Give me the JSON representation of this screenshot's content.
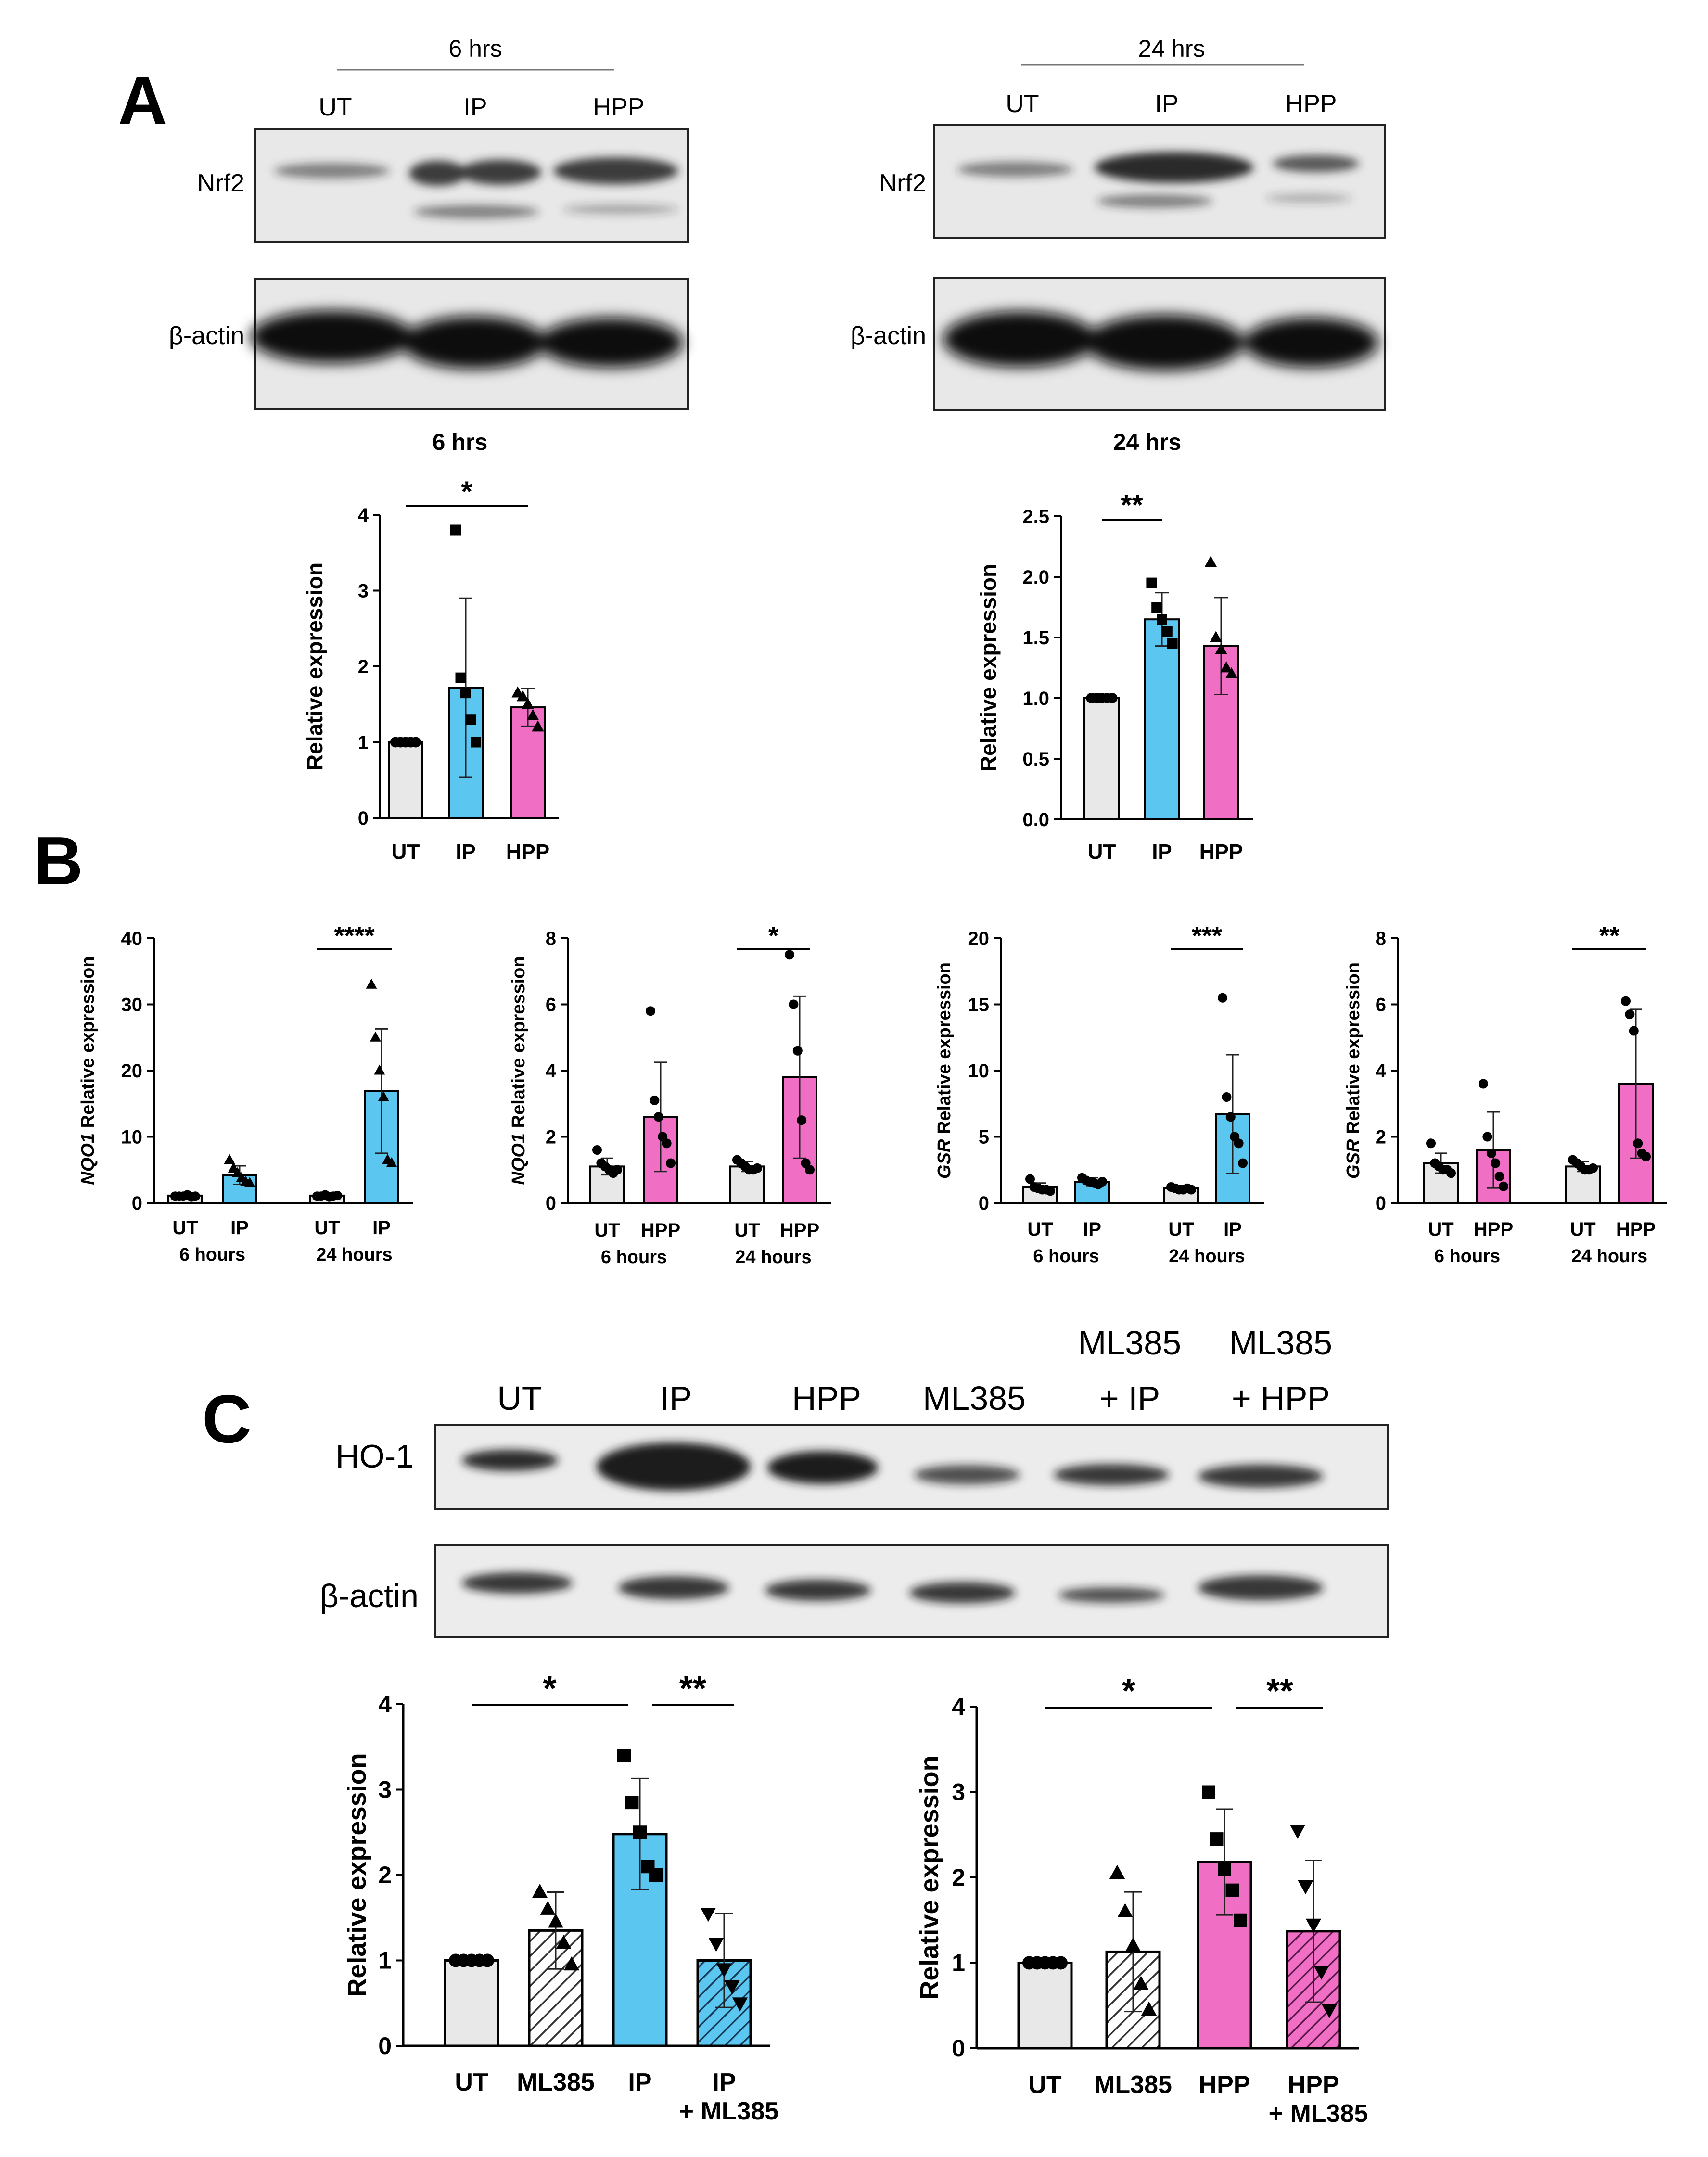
{
  "panel_A": {
    "letter": "A",
    "blots": [
      {
        "time_header": "6 hrs",
        "lanes": [
          "UT",
          "IP",
          "HPP"
        ],
        "rows": [
          "Nrf2",
          "β-actin"
        ]
      },
      {
        "time_header": "24 hrs",
        "lanes": [
          "UT",
          "IP",
          "HPP"
        ],
        "rows": [
          "Nrf2",
          "β-actin"
        ]
      }
    ]
  },
  "panel_B": {
    "letter": "B"
  },
  "panel_C": {
    "letter": "C",
    "lanes": [
      {
        "line1": "",
        "line2": "UT"
      },
      {
        "line1": "",
        "line2": "IP"
      },
      {
        "line1": "",
        "line2": "HPP"
      },
      {
        "line1": "",
        "line2": "ML385"
      },
      {
        "line1": "ML385",
        "line2": "+ IP"
      },
      {
        "line1": "ML385",
        "line2": "+ HPP"
      }
    ],
    "rows": [
      "HO-1",
      "β-actin"
    ]
  },
  "colors": {
    "ut": "#e8e8e8",
    "ip": "#5bc6f0",
    "hpp": "#f06ec4",
    "axis": "#000000",
    "blot_bg": "#e6e6e6",
    "band": "#222222"
  },
  "chart_data": [
    {
      "id": "A1",
      "type": "bar",
      "title": "6 hrs",
      "ylabel": "Relative expression",
      "ylabel_italic": "",
      "ylim": [
        0,
        4
      ],
      "yticks": [
        "0",
        "1",
        "2",
        "3",
        "4"
      ],
      "categories": [
        "UT",
        "IP",
        "HPP"
      ],
      "values": [
        1.0,
        1.72,
        1.46
      ],
      "sd": [
        0,
        1.18,
        0.25
      ],
      "colors": [
        "ut",
        "ip",
        "hpp"
      ],
      "hatch": [
        false,
        false,
        false
      ],
      "markers": [
        "circle",
        "square",
        "triangle"
      ],
      "points": [
        [
          1,
          1,
          1,
          1,
          1
        ],
        [
          3.8,
          1.85,
          1.65,
          1.3,
          1.0
        ],
        [
          1.65,
          1.6,
          1.5,
          1.35,
          1.2
        ]
      ],
      "sig": [
        {
          "from": 0,
          "to": 2,
          "label": "*"
        }
      ]
    },
    {
      "id": "A2",
      "type": "bar",
      "title": "24 hrs",
      "ylabel": "Relative expression",
      "ylabel_italic": "",
      "ylim": [
        0,
        2.5
      ],
      "yticks": [
        "0.0",
        "0.5",
        "1.0",
        "1.5",
        "2.0",
        "2.5"
      ],
      "categories": [
        "UT",
        "IP",
        "HPP"
      ],
      "values": [
        1.0,
        1.65,
        1.43
      ],
      "sd": [
        0,
        0.22,
        0.4
      ],
      "colors": [
        "ut",
        "ip",
        "hpp"
      ],
      "hatch": [
        false,
        false,
        false
      ],
      "markers": [
        "circle",
        "square",
        "triangle"
      ],
      "points": [
        [
          1,
          1,
          1,
          1,
          1
        ],
        [
          1.95,
          1.75,
          1.65,
          1.55,
          1.45
        ],
        [
          2.12,
          1.5,
          1.4,
          1.25,
          1.2
        ]
      ],
      "sig": [
        {
          "from": 0,
          "to": 1,
          "label": "**"
        }
      ]
    },
    {
      "id": "B1",
      "type": "grouped_bar",
      "ylabel": " Relative expression",
      "ylabel_italic": "NQO1",
      "ylim": [
        0,
        40
      ],
      "yticks": [
        "0",
        "10",
        "20",
        "30",
        "40"
      ],
      "groups": [
        "6 hours",
        "24 hours"
      ],
      "categories": [
        "UT",
        "IP",
        "UT",
        "IP"
      ],
      "values": [
        1.1,
        4.2,
        1.1,
        16.9
      ],
      "sd": [
        0.3,
        1.4,
        0.3,
        9.4
      ],
      "colors": [
        "ut",
        "ip",
        "ut",
        "ip"
      ],
      "markers": [
        "circle",
        "triangle",
        "circle",
        "triangle"
      ],
      "points": [
        [
          1,
          1,
          1,
          1.2,
          0.9,
          1
        ],
        [
          6.5,
          5.2,
          4.5,
          3.8,
          3.2,
          3.0
        ],
        [
          1,
          1,
          1.2,
          0.9,
          1,
          1.1
        ],
        [
          33,
          25,
          20,
          16,
          6.5,
          6
        ]
      ],
      "sig": [
        {
          "from": 2,
          "to": 3,
          "label": "****"
        }
      ]
    },
    {
      "id": "B2",
      "type": "grouped_bar",
      "ylabel": " Relative expression",
      "ylabel_italic": "NQO1",
      "ylim": [
        0,
        8
      ],
      "yticks": [
        "0",
        "2",
        "4",
        "6",
        "8"
      ],
      "groups": [
        "6 hours",
        "24 hours"
      ],
      "categories": [
        "UT",
        "HPP",
        "UT",
        "HPP"
      ],
      "values": [
        1.1,
        2.6,
        1.1,
        3.8
      ],
      "sd": [
        0.25,
        1.65,
        0.15,
        2.45
      ],
      "colors": [
        "ut",
        "hpp",
        "ut",
        "hpp"
      ],
      "markers": [
        "circle",
        "circle",
        "circle",
        "circle"
      ],
      "points": [
        [
          1.6,
          1.2,
          1.1,
          1,
          0.9,
          1
        ],
        [
          5.8,
          3.1,
          2.6,
          2.0,
          1.8,
          1.2
        ],
        [
          1.3,
          1.2,
          1.1,
          1,
          1,
          1.05
        ],
        [
          7.5,
          6.0,
          4.6,
          2.5,
          1.2,
          1.0
        ]
      ],
      "sig": [
        {
          "from": 2,
          "to": 3,
          "label": "*"
        }
      ]
    },
    {
      "id": "B3",
      "type": "grouped_bar",
      "ylabel": " Relative expression",
      "ylabel_italic": "GSR",
      "ylim": [
        0,
        20
      ],
      "yticks": [
        "0",
        "5",
        "10",
        "15",
        "20"
      ],
      "groups": [
        "6 hours",
        "24 hours"
      ],
      "categories": [
        "UT",
        "IP",
        "UT",
        "IP"
      ],
      "values": [
        1.2,
        1.6,
        1.1,
        6.7
      ],
      "sd": [
        0.3,
        0.3,
        0.2,
        4.5
      ],
      "colors": [
        "ut",
        "ip",
        "ut",
        "ip"
      ],
      "markers": [
        "circle",
        "circle",
        "circle",
        "circle"
      ],
      "points": [
        [
          1.8,
          1.2,
          1.1,
          1,
          1,
          0.9
        ],
        [
          1.9,
          1.7,
          1.6,
          1.5,
          1.4,
          1.6
        ],
        [
          1.2,
          1.1,
          1,
          1,
          1.1,
          1.0
        ],
        [
          15.5,
          8.0,
          6.5,
          5.0,
          4.5,
          3.0
        ]
      ],
      "sig": [
        {
          "from": 2,
          "to": 3,
          "label": "***"
        }
      ]
    },
    {
      "id": "B4",
      "type": "grouped_bar",
      "ylabel": " Relative expression",
      "ylabel_italic": "GSR",
      "ylim": [
        0,
        8
      ],
      "yticks": [
        "0",
        "2",
        "4",
        "6",
        "8"
      ],
      "groups": [
        "6 hours",
        "24 hours"
      ],
      "categories": [
        "UT",
        "HPP",
        "UT",
        "HPP"
      ],
      "values": [
        1.2,
        1.6,
        1.1,
        3.6
      ],
      "sd": [
        0.3,
        1.15,
        0.15,
        2.25
      ],
      "colors": [
        "ut",
        "hpp",
        "ut",
        "hpp"
      ],
      "markers": [
        "circle",
        "circle",
        "circle",
        "circle"
      ],
      "points": [
        [
          1.8,
          1.2,
          1.1,
          1,
          1,
          0.9
        ],
        [
          3.6,
          2.0,
          1.5,
          1.2,
          0.8,
          0.5
        ],
        [
          1.3,
          1.2,
          1.1,
          1,
          1,
          1.05
        ],
        [
          6.1,
          5.7,
          5.2,
          1.8,
          1.5,
          1.4
        ]
      ],
      "sig": [
        {
          "from": 2,
          "to": 3,
          "label": "**"
        }
      ]
    },
    {
      "id": "C1",
      "type": "bar",
      "ylabel": "Relative expression",
      "ylabel_italic": "",
      "ylim": [
        0,
        4
      ],
      "yticks": [
        "0",
        "1",
        "2",
        "3",
        "4"
      ],
      "categories": [
        "UT",
        "ML385",
        "IP",
        "IP\n+ ML385"
      ],
      "values": [
        1.0,
        1.35,
        2.48,
        1.0
      ],
      "sd": [
        0,
        0.45,
        0.65,
        0.55
      ],
      "colors": [
        "ut",
        "ut",
        "ip",
        "ip"
      ],
      "hatch": [
        false,
        true,
        false,
        true
      ],
      "markers": [
        "circle",
        "triangle",
        "square",
        "invtriangle"
      ],
      "points": [
        [
          1,
          1,
          1,
          1,
          1
        ],
        [
          1.8,
          1.6,
          1.45,
          1.2,
          0.95
        ],
        [
          3.4,
          2.85,
          2.5,
          2.1,
          2.0
        ],
        [
          1.55,
          1.2,
          0.9,
          0.7,
          0.5
        ]
      ],
      "sig": [
        {
          "from": 0,
          "to": 2,
          "label": "*"
        },
        {
          "from": 2,
          "to": 3,
          "label": "**"
        }
      ]
    },
    {
      "id": "C2",
      "type": "bar",
      "ylabel": "Relative expression",
      "ylabel_italic": "",
      "ylim": [
        0,
        4
      ],
      "yticks": [
        "0",
        "1",
        "2",
        "3",
        "4"
      ],
      "categories": [
        "UT",
        "ML385",
        "HPP",
        "HPP\n+ ML385"
      ],
      "values": [
        1.0,
        1.13,
        2.18,
        1.37
      ],
      "sd": [
        0,
        0.7,
        0.62,
        0.83
      ],
      "colors": [
        "ut",
        "ut",
        "hpp",
        "hpp"
      ],
      "hatch": [
        false,
        true,
        false,
        true
      ],
      "markers": [
        "circle",
        "triangle",
        "square",
        "invtriangle"
      ],
      "points": [
        [
          1,
          1,
          1,
          1,
          1
        ],
        [
          2.05,
          1.6,
          1.2,
          0.75,
          0.45
        ],
        [
          3.0,
          2.45,
          2.1,
          1.85,
          1.5
        ],
        [
          2.55,
          1.9,
          1.45,
          0.9,
          0.45
        ]
      ],
      "sig": [
        {
          "from": 0,
          "to": 2,
          "label": "*"
        },
        {
          "from": 2,
          "to": 3,
          "label": "**"
        }
      ]
    }
  ]
}
